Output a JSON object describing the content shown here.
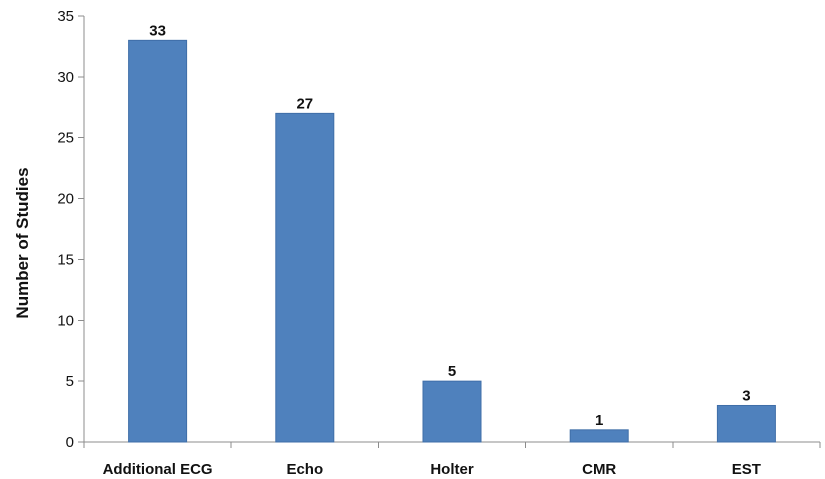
{
  "chart_data": {
    "type": "bar",
    "categories": [
      "Additional ECG",
      "Echo",
      "Holter",
      "CMR",
      "EST"
    ],
    "values": [
      33,
      27,
      5,
      1,
      3
    ],
    "data_labels": [
      "33",
      "27",
      "5",
      "1",
      "3"
    ],
    "xlabel": "",
    "ylabel": "Number of Studies",
    "ylim": [
      0,
      35
    ],
    "yticks": [
      0,
      5,
      10,
      15,
      20,
      25,
      30,
      35
    ],
    "ytick_labels": [
      "0",
      "5",
      "10",
      "15",
      "20",
      "25",
      "30",
      "35"
    ],
    "grid": false,
    "legend": "none",
    "bar_color": "#4f81bd",
    "bar_edge_color": "#3f6ea8"
  }
}
